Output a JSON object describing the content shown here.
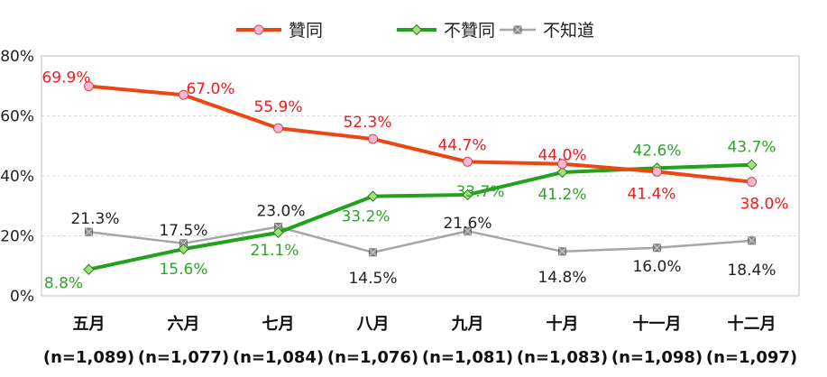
{
  "chart_data": {
    "type": "line",
    "categories": [
      "五月",
      "六月",
      "七月",
      "八月",
      "九月",
      "十月",
      "十一月",
      "十二月"
    ],
    "sample_sizes": [
      "(n=1,089)",
      "(n=1,077)",
      "(n=1,084)",
      "(n=1,076)",
      "(n=1,081)",
      "(n=1,083)",
      "(n=1,098)",
      "(n=1,097)"
    ],
    "ylim": [
      0,
      80
    ],
    "yticks": [
      "0%",
      "20%",
      "40%",
      "60%",
      "80%"
    ],
    "grid": true,
    "legend_position": "top",
    "series": [
      {
        "name": "贊同",
        "color": "#ee4611",
        "marker": "circle",
        "values": [
          69.9,
          67.0,
          55.9,
          52.3,
          44.7,
          44.0,
          41.4,
          38.0
        ],
        "labels": [
          "69.9%",
          "67.0%",
          "55.9%",
          "52.3%",
          "44.7%",
          "44.0%",
          "41.4%",
          "38.0%"
        ],
        "label_color": "#ee1c1c"
      },
      {
        "name": "不贊同",
        "color": "#22a11b",
        "marker": "diamond",
        "values": [
          8.8,
          15.6,
          21.1,
          33.2,
          33.7,
          41.2,
          42.6,
          43.7
        ],
        "labels": [
          "8.8%",
          "15.6%",
          "21.1%",
          "33.2%",
          "33.7%",
          "41.2%",
          "42.6%",
          "43.7%"
        ],
        "label_color": "#2da52a"
      },
      {
        "name": "不知道",
        "color": "#a6a6a6",
        "marker": "x-square",
        "values": [
          21.3,
          17.5,
          23.0,
          14.5,
          21.6,
          14.8,
          16.0,
          18.4
        ],
        "labels": [
          "21.3%",
          "17.5%",
          "23.0%",
          "14.5%",
          "21.6%",
          "14.8%",
          "16.0%",
          "18.4%"
        ],
        "label_color": "#222222"
      }
    ]
  }
}
